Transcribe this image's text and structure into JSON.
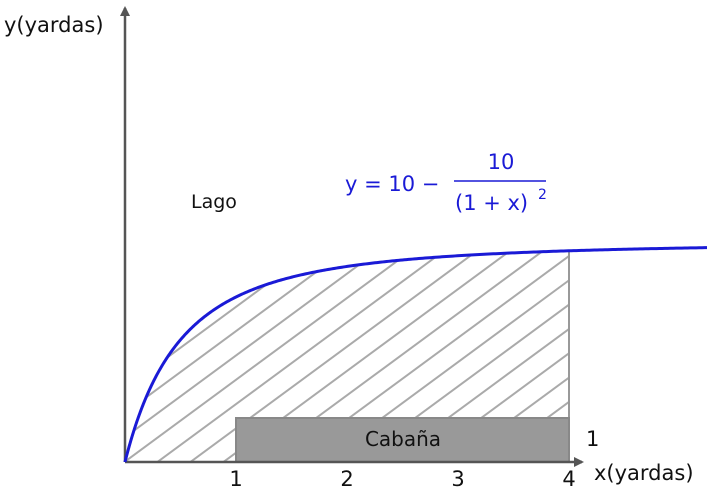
{
  "axes": {
    "x_label": "x(yardas)",
    "y_label": "y(yardas)",
    "x_ticks": [
      "1",
      "2",
      "3",
      "4"
    ],
    "cabin_height_label": "1"
  },
  "labels": {
    "lake": "Lago",
    "cabin": "Cabaña"
  },
  "equation": {
    "lhs": "y = 10 −",
    "numerator": "10",
    "denominator": "(1 + x)",
    "exponent": "2"
  },
  "colors": {
    "curve": "#1a1ad6",
    "cabin_fill": "#999999",
    "hatch": "#aaaaaa",
    "axis": "#555555"
  },
  "chart_data": {
    "type": "diagram",
    "curve_function": "y = 10 - 10/(1+x)^2",
    "x_domain": [
      0,
      5.25
    ],
    "shaded_region": {
      "x_from": 0,
      "x_to": 4,
      "bounded_above_by": "curve",
      "bounded_below_by": "x-axis"
    },
    "cabin": {
      "x_from": 1,
      "x_to": 4,
      "y_from": 0,
      "y_to": 1
    }
  }
}
